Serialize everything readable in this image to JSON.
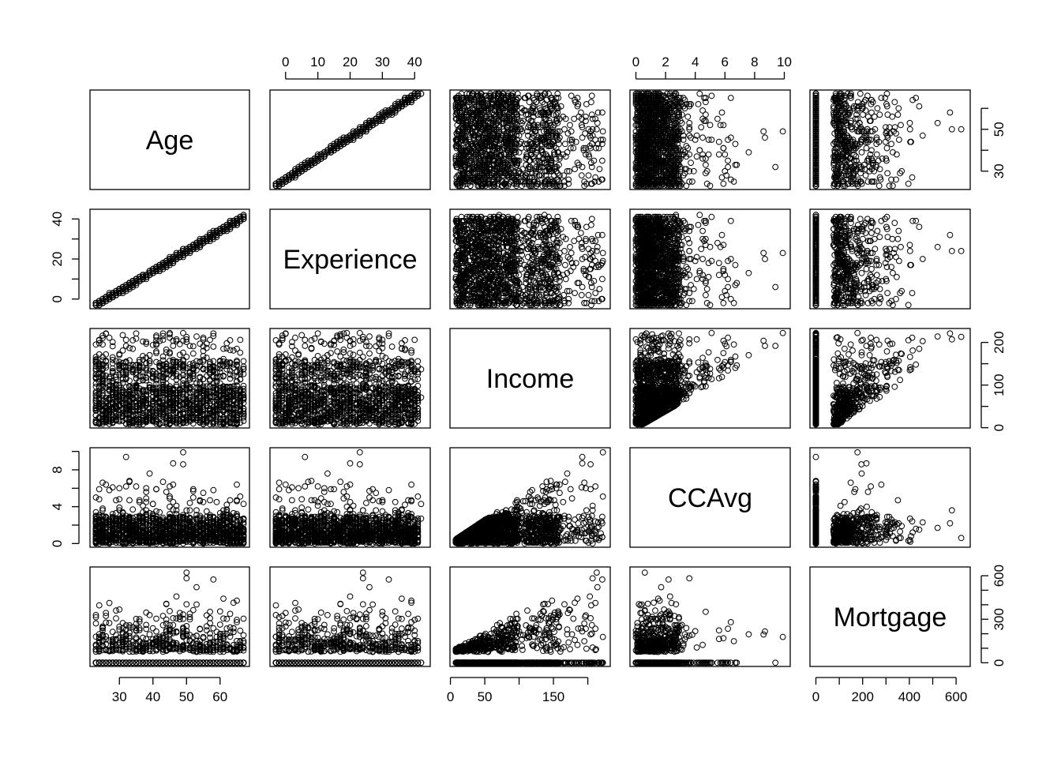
{
  "chart_data": {
    "type": "scatter",
    "layout": "pairs-matrix",
    "variables": [
      {
        "name": "Age",
        "range": [
          23,
          67
        ],
        "ticks": [
          30,
          40,
          50,
          60
        ]
      },
      {
        "name": "Experience",
        "range": [
          -3,
          43
        ],
        "ticks": [
          0,
          10,
          20,
          30,
          40
        ]
      },
      {
        "name": "Income",
        "range": [
          8,
          224
        ],
        "ticks": [
          0,
          50,
          100,
          150,
          200
        ]
      },
      {
        "name": "CCAvg",
        "range": [
          0,
          10
        ],
        "ticks": [
          0,
          2,
          4,
          6,
          8,
          10
        ]
      },
      {
        "name": "Mortgage",
        "range": [
          0,
          635
        ],
        "ticks": [
          0,
          100,
          200,
          300,
          400,
          500,
          600
        ]
      }
    ],
    "axes": {
      "top": [
        {
          "variable": "Experience",
          "labels": [
            "0",
            "10",
            "20",
            "30",
            "40"
          ]
        },
        {
          "variable": "CCAvg",
          "labels": [
            "0",
            "2",
            "4",
            "6",
            "8",
            "10"
          ]
        }
      ],
      "bottom": [
        {
          "variable": "Age",
          "labels": [
            "30",
            "40",
            "50",
            "60"
          ]
        },
        {
          "variable": "Income",
          "labels": [
            "0",
            "50",
            "150"
          ],
          "minor_ticks": [
            100,
            200
          ]
        },
        {
          "variable": "Mortgage",
          "labels": [
            "0",
            "200",
            "400",
            "600"
          ],
          "minor_ticks": [
            100,
            300,
            500
          ]
        }
      ],
      "left": [
        {
          "variable": "Experience",
          "labels": [
            "0",
            "20",
            "40"
          ],
          "minor_ticks": [
            10,
            30
          ]
        },
        {
          "variable": "CCAvg",
          "labels": [
            "0",
            "4",
            "8"
          ],
          "minor_ticks": [
            2,
            6,
            10
          ]
        }
      ],
      "right": [
        {
          "variable": "Age",
          "labels": [
            "30",
            "50"
          ],
          "minor_ticks": [
            40,
            60
          ]
        },
        {
          "variable": "Income",
          "labels": [
            "0",
            "100",
            "200"
          ],
          "minor_ticks": [
            50,
            150
          ]
        },
        {
          "variable": "Mortgage",
          "labels": [
            "0",
            "300",
            "600"
          ],
          "minor_ticks": [
            100,
            200,
            400,
            500
          ]
        }
      ]
    },
    "grid": false,
    "legend": "none",
    "marker": "open-circle",
    "n_points": 5000,
    "point_color": "#000000"
  }
}
